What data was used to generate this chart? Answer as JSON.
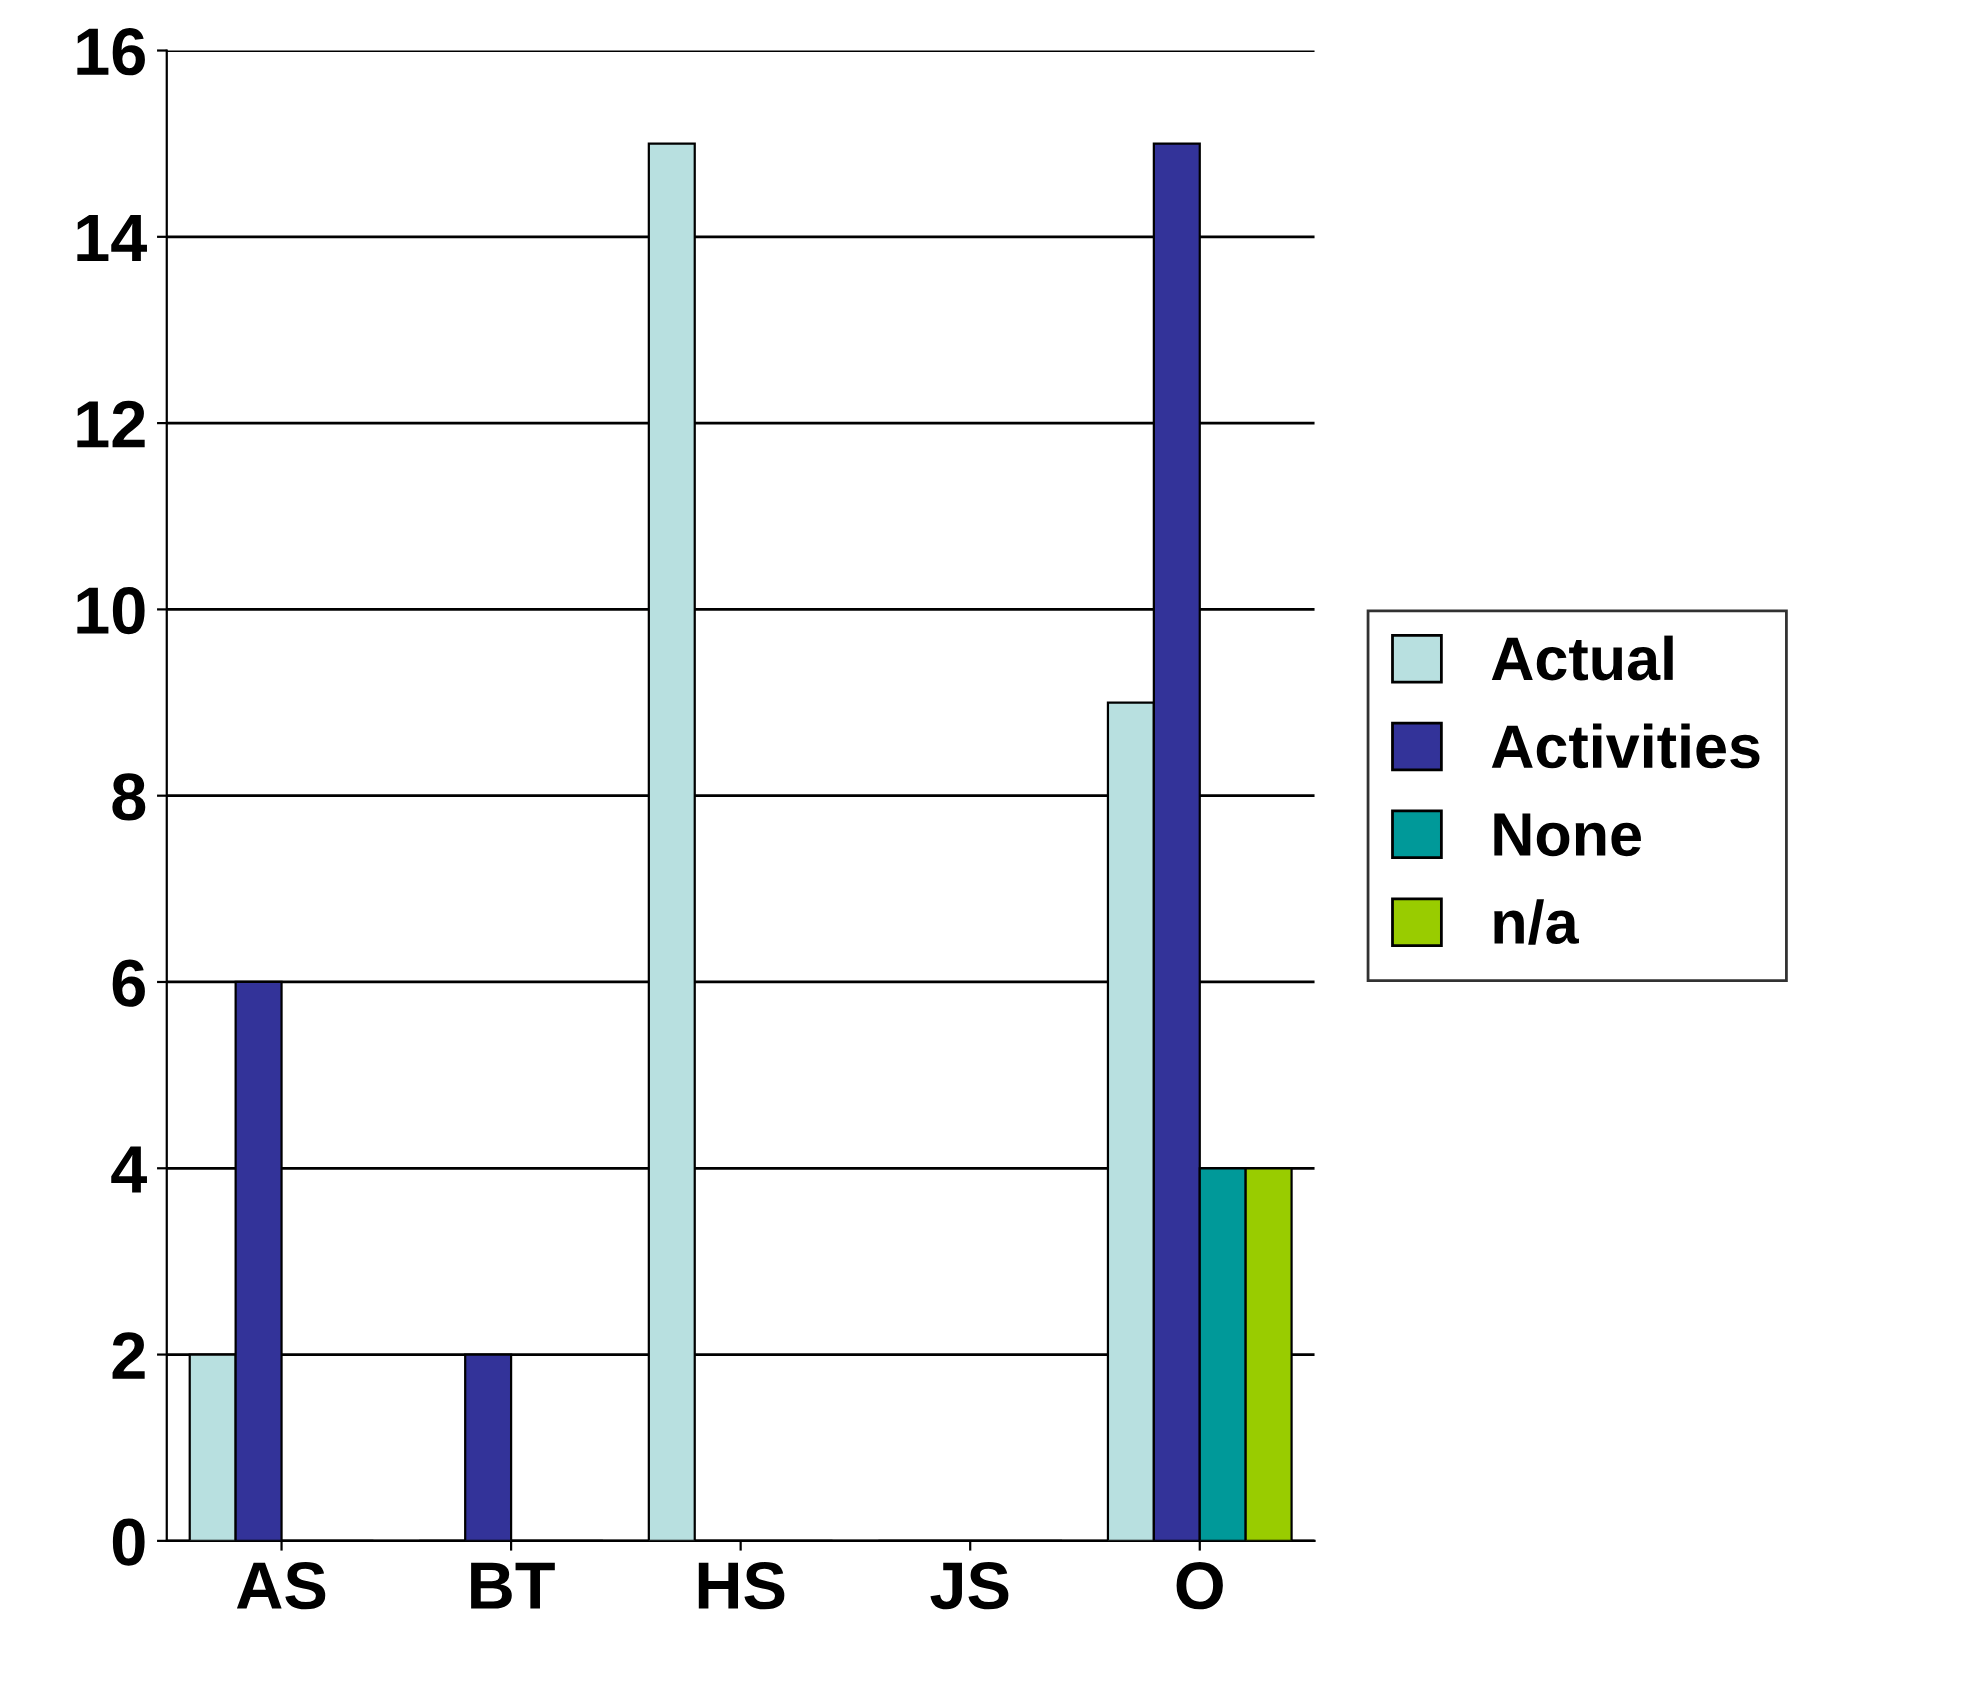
{
  "chart_data": {
    "type": "bar",
    "categories": [
      "AS",
      "BT",
      "HS",
      "JS",
      "O"
    ],
    "series": [
      {
        "name": "Actual",
        "color": "#b8e0e0",
        "values": [
          2,
          0,
          15,
          0,
          9
        ]
      },
      {
        "name": "Activities",
        "color": "#333399",
        "values": [
          6,
          2,
          0,
          0,
          15
        ]
      },
      {
        "name": "None",
        "color": "#009999",
        "values": [
          0,
          0,
          0,
          0,
          4
        ]
      },
      {
        "name": "n/a",
        "color": "#99cc00",
        "values": [
          0,
          0,
          0,
          0,
          4
        ]
      }
    ],
    "ylim": [
      0,
      16
    ],
    "yticks": [
      0,
      2,
      4,
      6,
      8,
      10,
      12,
      14,
      16
    ],
    "grid": "y",
    "legend": "right"
  }
}
